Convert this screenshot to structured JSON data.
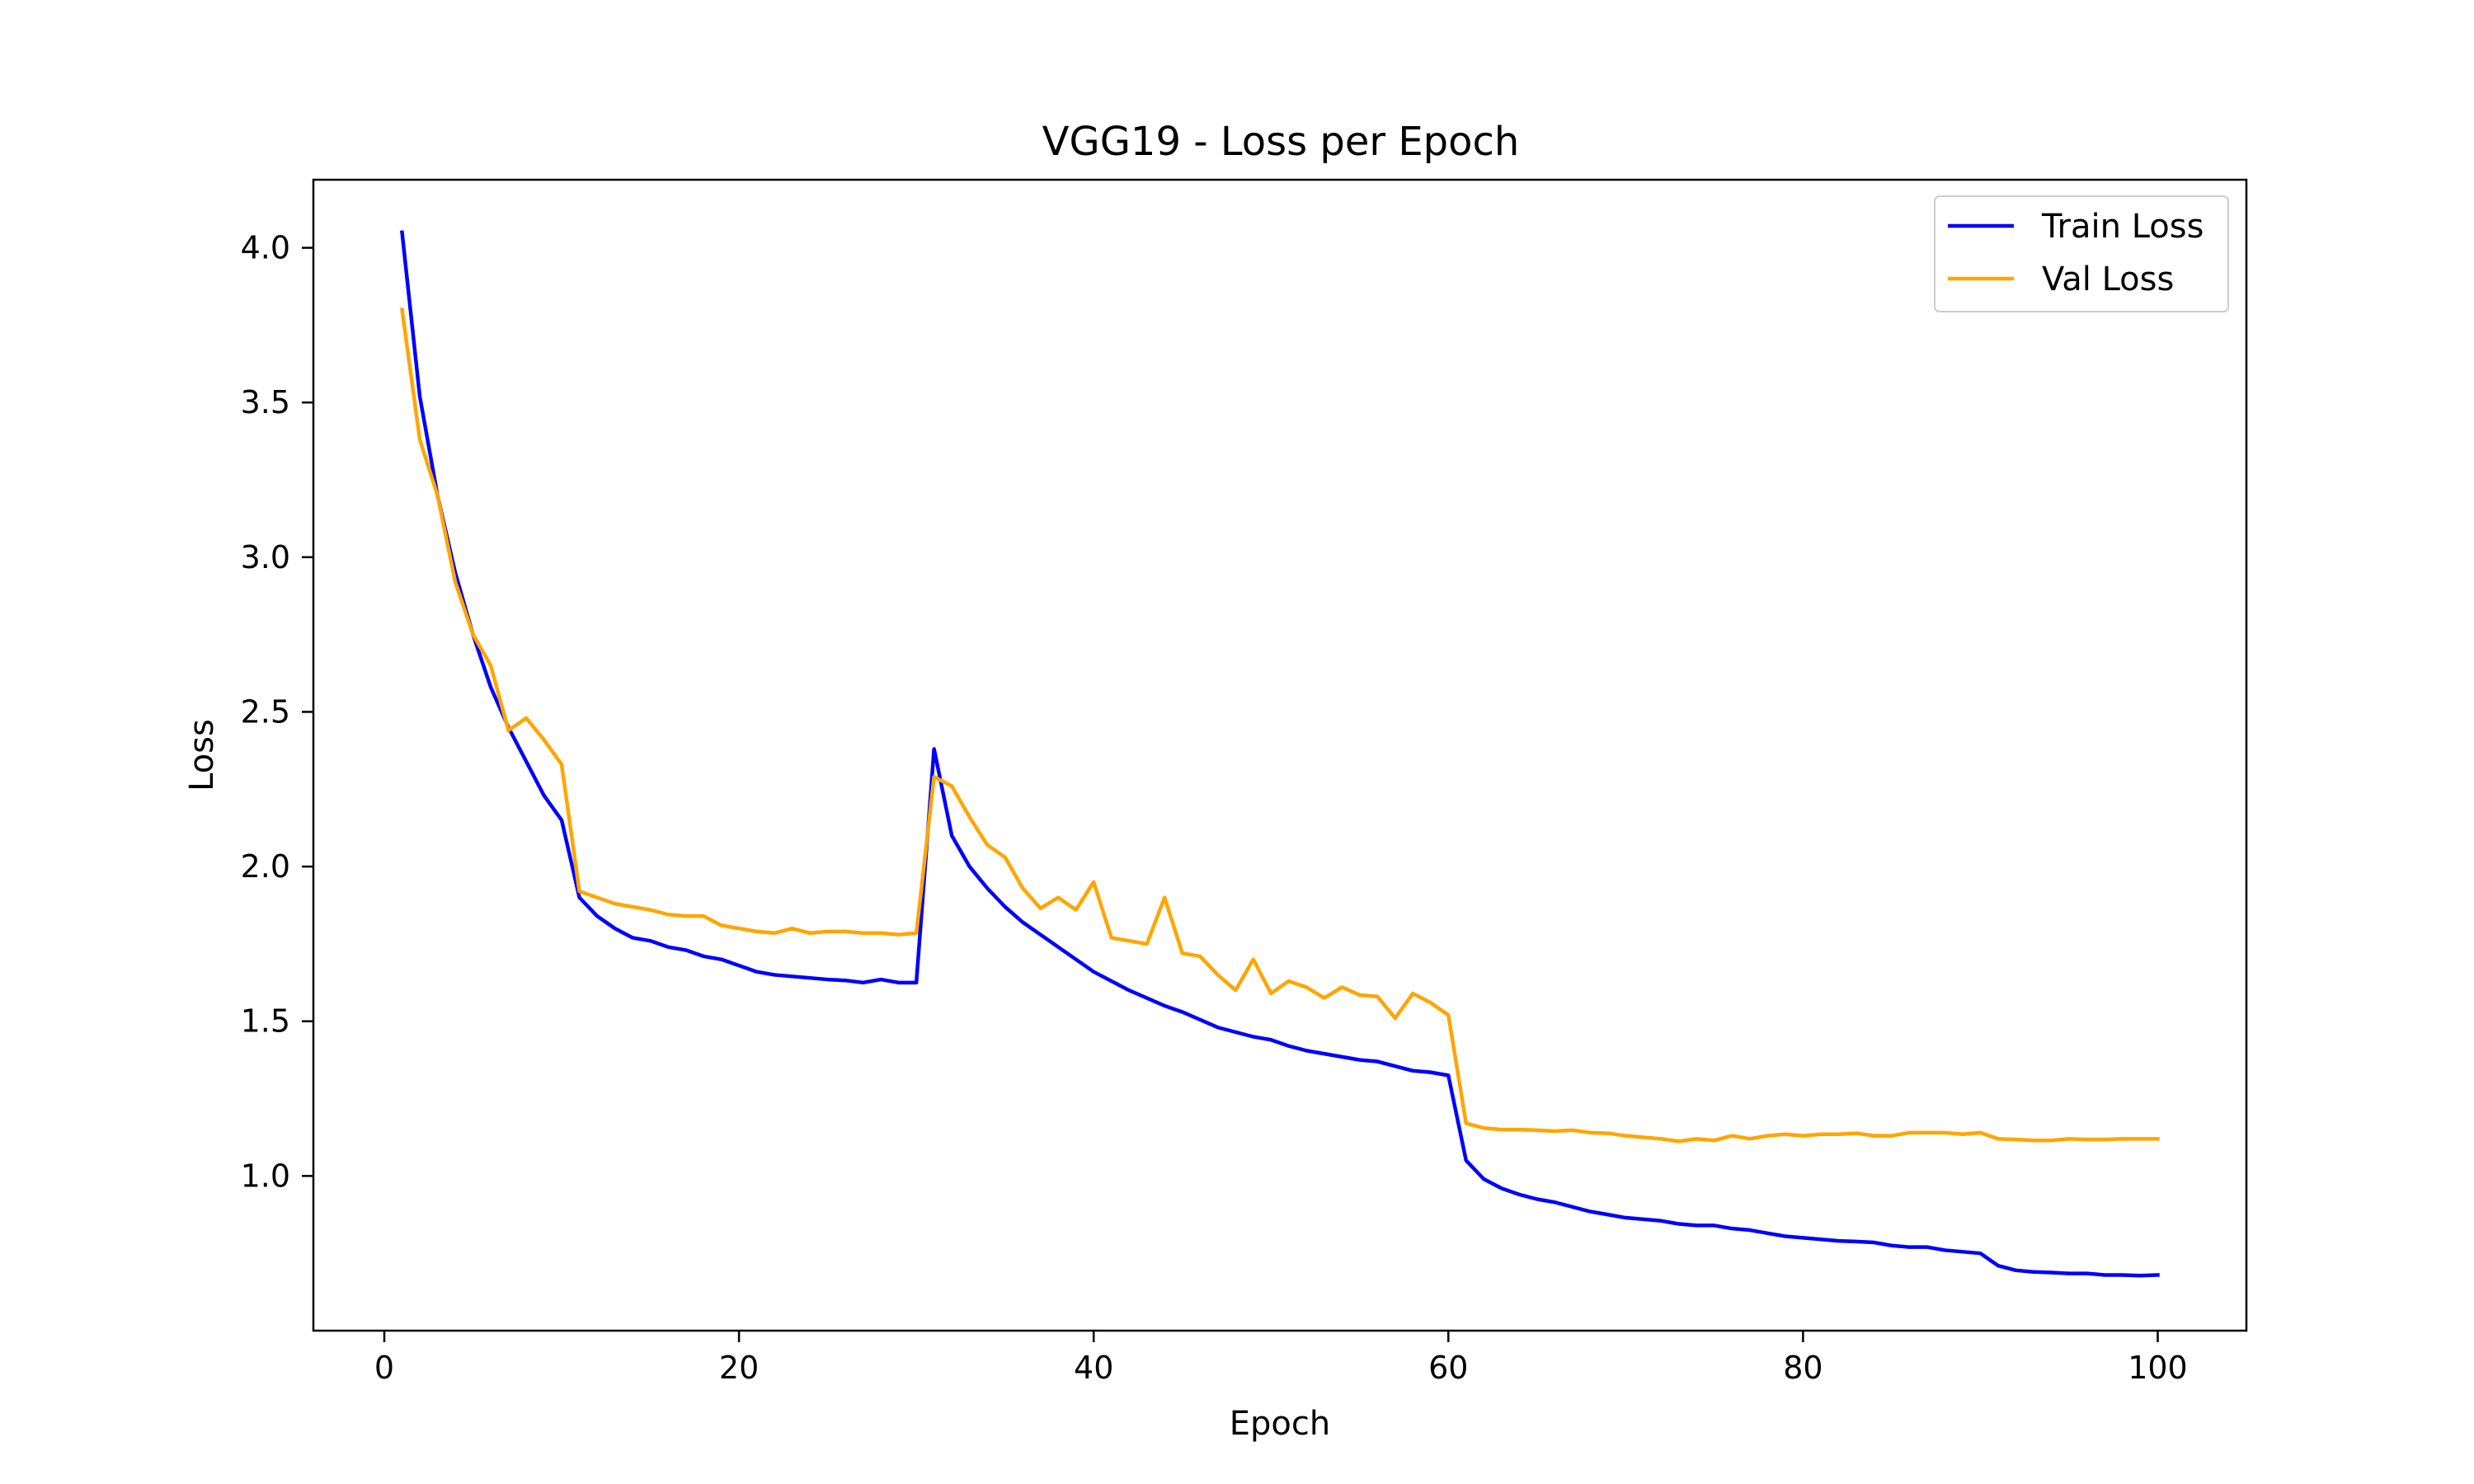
{
  "chart_data": {
    "type": "line",
    "title": "VGG19 - Loss per Epoch",
    "xlabel": "Epoch",
    "ylabel": "Loss",
    "xlim": [
      -4,
      105
    ],
    "ylim": [
      0.5,
      4.22
    ],
    "xticks": [
      0,
      20,
      40,
      60,
      80,
      100
    ],
    "xtick_labels": [
      "0",
      "20",
      "40",
      "60",
      "80",
      "100"
    ],
    "yticks": [
      1.0,
      1.5,
      2.0,
      2.5,
      3.0,
      3.5,
      4.0
    ],
    "ytick_labels": [
      "1.0",
      "1.5",
      "2.0",
      "2.5",
      "3.0",
      "3.5",
      "4.0"
    ],
    "grid": false,
    "legend_position": "top-right",
    "x": [
      1,
      2,
      3,
      4,
      5,
      6,
      7,
      8,
      9,
      10,
      11,
      12,
      13,
      14,
      15,
      16,
      17,
      18,
      19,
      20,
      21,
      22,
      23,
      24,
      25,
      26,
      27,
      28,
      29,
      30,
      31,
      32,
      33,
      34,
      35,
      36,
      37,
      38,
      39,
      40,
      41,
      42,
      43,
      44,
      45,
      46,
      47,
      48,
      49,
      50,
      51,
      52,
      53,
      54,
      55,
      56,
      57,
      58,
      59,
      60,
      61,
      62,
      63,
      64,
      65,
      66,
      67,
      68,
      69,
      70,
      71,
      72,
      73,
      74,
      75,
      76,
      77,
      78,
      79,
      80,
      81,
      82,
      83,
      84,
      85,
      86,
      87,
      88,
      89,
      90,
      91,
      92,
      93,
      94,
      95,
      96,
      97,
      98,
      99,
      100
    ],
    "series": [
      {
        "name": "Train Loss",
        "color": "#0000ff",
        "values": [
          4.05,
          3.52,
          3.2,
          2.95,
          2.75,
          2.58,
          2.45,
          2.34,
          2.23,
          2.15,
          1.9,
          1.84,
          1.8,
          1.77,
          1.76,
          1.74,
          1.73,
          1.71,
          1.7,
          1.68,
          1.66,
          1.65,
          1.645,
          1.64,
          1.635,
          1.632,
          1.625,
          1.635,
          1.625,
          1.625,
          2.38,
          2.1,
          2.0,
          1.93,
          1.87,
          1.82,
          1.78,
          1.74,
          1.7,
          1.66,
          1.63,
          1.6,
          1.575,
          1.55,
          1.53,
          1.505,
          1.48,
          1.465,
          1.45,
          1.44,
          1.42,
          1.405,
          1.395,
          1.385,
          1.375,
          1.37,
          1.355,
          1.34,
          1.335,
          1.325,
          1.05,
          0.99,
          0.96,
          0.94,
          0.925,
          0.915,
          0.9,
          0.885,
          0.875,
          0.865,
          0.86,
          0.855,
          0.845,
          0.84,
          0.84,
          0.83,
          0.825,
          0.815,
          0.805,
          0.8,
          0.795,
          0.79,
          0.788,
          0.785,
          0.775,
          0.77,
          0.77,
          0.76,
          0.755,
          0.75,
          0.71,
          0.695,
          0.69,
          0.688,
          0.685,
          0.685,
          0.68,
          0.68,
          0.678,
          0.68
        ]
      },
      {
        "name": "Val Loss",
        "color": "#ffa500",
        "values": [
          3.8,
          3.38,
          3.2,
          2.92,
          2.75,
          2.65,
          2.44,
          2.48,
          2.41,
          2.33,
          1.92,
          1.9,
          1.88,
          1.87,
          1.86,
          1.845,
          1.84,
          1.84,
          1.81,
          1.8,
          1.79,
          1.785,
          1.8,
          1.785,
          1.79,
          1.79,
          1.785,
          1.785,
          1.78,
          1.785,
          2.29,
          2.26,
          2.16,
          2.07,
          2.03,
          1.93,
          1.865,
          1.9,
          1.86,
          1.95,
          1.77,
          1.76,
          1.75,
          1.9,
          1.72,
          1.71,
          1.65,
          1.6,
          1.7,
          1.59,
          1.63,
          1.61,
          1.575,
          1.61,
          1.585,
          1.58,
          1.51,
          1.59,
          1.56,
          1.52,
          1.17,
          1.155,
          1.15,
          1.15,
          1.148,
          1.145,
          1.148,
          1.14,
          1.138,
          1.13,
          1.125,
          1.12,
          1.112,
          1.12,
          1.115,
          1.13,
          1.12,
          1.13,
          1.135,
          1.13,
          1.135,
          1.135,
          1.138,
          1.13,
          1.13,
          1.14,
          1.14,
          1.14,
          1.135,
          1.14,
          1.12,
          1.118,
          1.115,
          1.115,
          1.12,
          1.118,
          1.118,
          1.12,
          1.12,
          1.12
        ]
      }
    ]
  }
}
